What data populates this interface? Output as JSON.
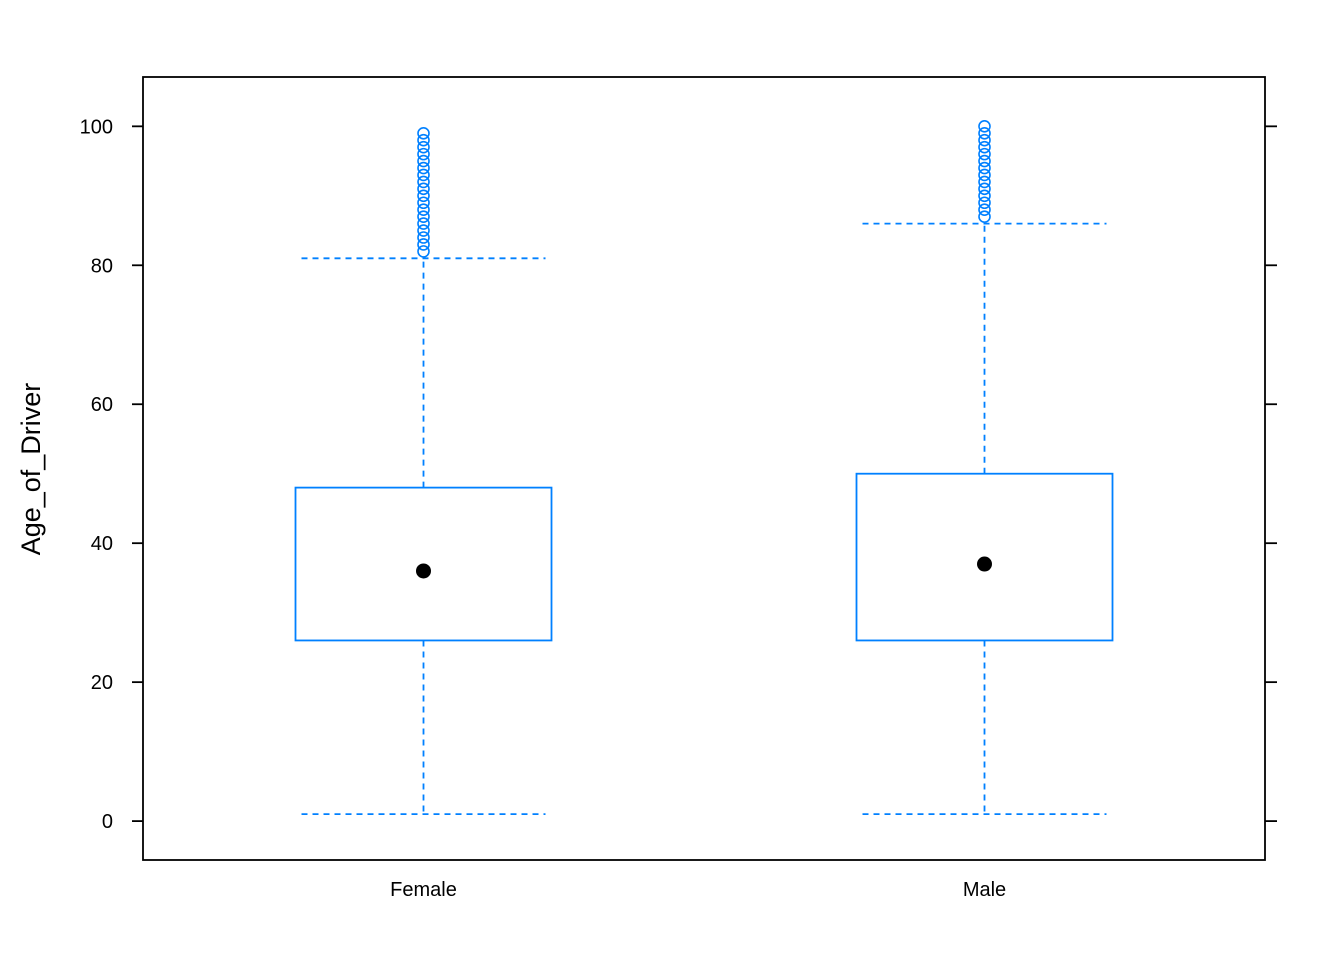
{
  "chart_data": {
    "type": "box",
    "title": "",
    "xlabel": "",
    "ylabel": "Age_of_Driver",
    "ylim": [
      -5.6,
      107.1
    ],
    "yticks": [
      0,
      20,
      40,
      60,
      80,
      100
    ],
    "ytick_labels": [
      "0",
      "20",
      "40",
      "60",
      "80",
      "100"
    ],
    "grid": false,
    "categories": [
      "Female",
      "Male"
    ],
    "boxes": [
      {
        "category": "Female",
        "whisker_low": 1,
        "q1": 26,
        "median": 36,
        "q3": 48,
        "whisker_high": 81,
        "outliers": [
          82,
          83,
          84,
          85,
          86,
          87,
          88,
          89,
          90,
          91,
          92,
          93,
          94,
          95,
          96,
          97,
          98,
          99
        ]
      },
      {
        "category": "Male",
        "whisker_low": 1,
        "q1": 26,
        "median": 37,
        "q3": 50,
        "whisker_high": 86,
        "outliers": [
          87,
          88,
          89,
          90,
          91,
          92,
          93,
          94,
          95,
          96,
          97,
          98,
          99,
          100
        ]
      }
    ],
    "colors": {
      "box": "#0080ff",
      "median": "#000000",
      "frame": "#000000"
    }
  }
}
